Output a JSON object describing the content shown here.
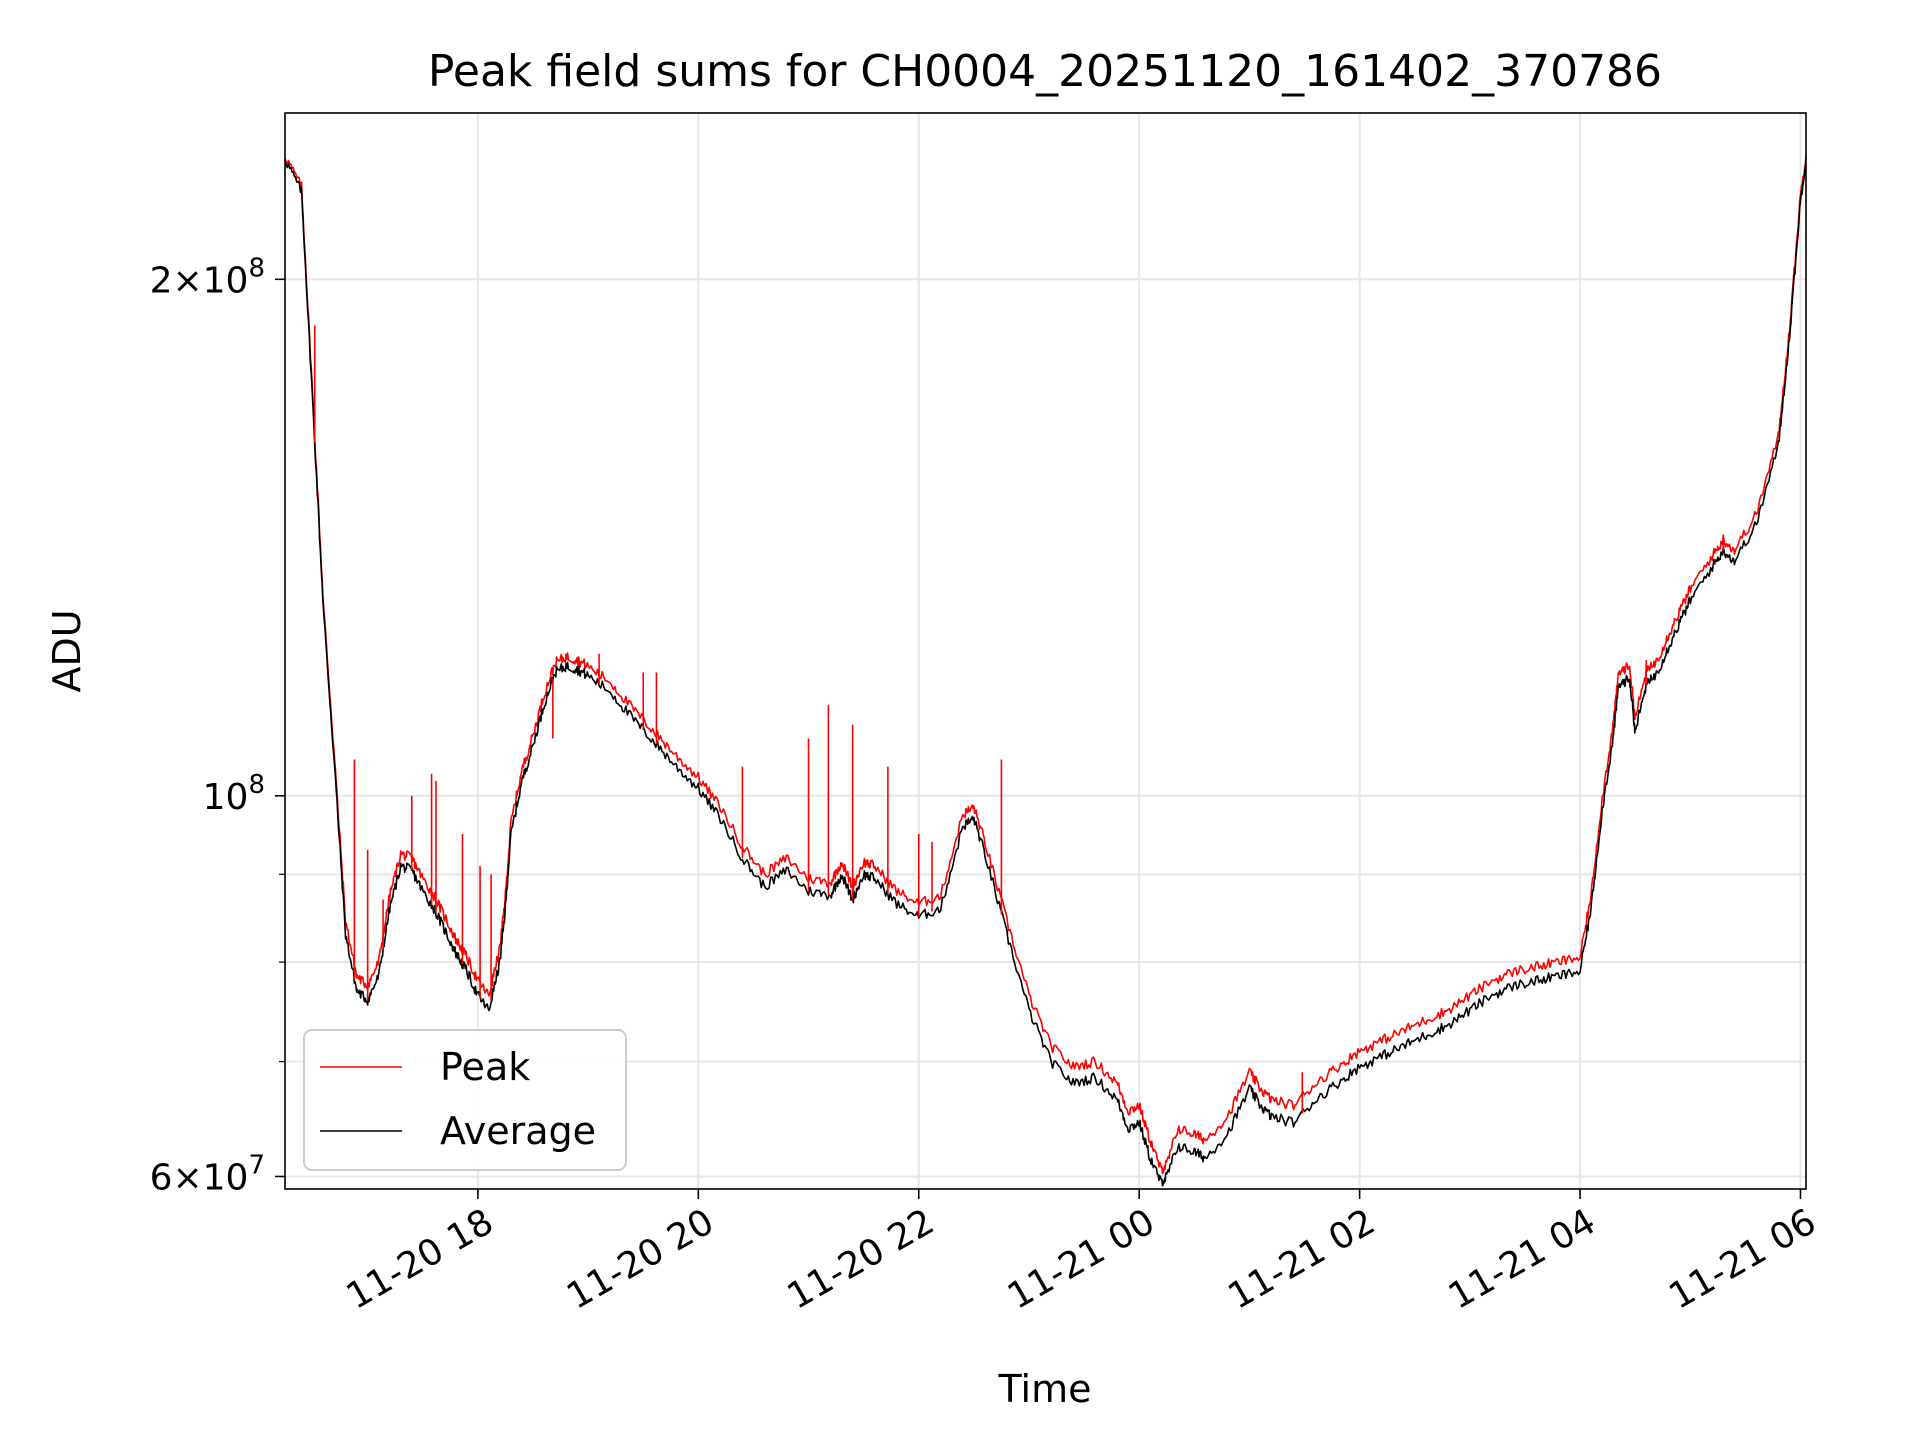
{
  "chart_data": {
    "type": "line",
    "title": "Peak field sums for CH0004_20251120_161402_370786",
    "xlabel": "Time",
    "ylabel": "ADU",
    "yscale": "log",
    "ylim": [
      59000000,
      250000000
    ],
    "xlim_hours": [
      16.25,
      30.05
    ],
    "x_unit": "hours since 2025-11-20 00:00",
    "grid": true,
    "legend_position": "lower-left",
    "x_ticks": [
      {
        "hour": 18,
        "label": "11-20 18"
      },
      {
        "hour": 20,
        "label": "11-20 20"
      },
      {
        "hour": 22,
        "label": "11-20 22"
      },
      {
        "hour": 24,
        "label": "11-21 00"
      },
      {
        "hour": 26,
        "label": "11-21 02"
      },
      {
        "hour": 28,
        "label": "11-21 04"
      },
      {
        "hour": 30,
        "label": "11-21 06"
      }
    ],
    "y_ticks": [
      {
        "value": 60000000,
        "base": "6",
        "exp": "7"
      },
      {
        "value": 100000000,
        "base": "",
        "exp": "8"
      },
      {
        "value": 200000000,
        "base": "2",
        "exp": "8"
      }
    ],
    "y_minor_ticks": [
      70000000,
      80000000,
      90000000
    ],
    "series": [
      {
        "name": "Average",
        "color": "#000000",
        "x": [
          16.25,
          16.4,
          16.5,
          16.6,
          16.7,
          16.8,
          16.9,
          17.0,
          17.1,
          17.2,
          17.3,
          17.4,
          17.5,
          17.6,
          17.7,
          17.8,
          17.9,
          18.0,
          18.1,
          18.2,
          18.25,
          18.3,
          18.4,
          18.5,
          18.6,
          18.7,
          18.8,
          18.9,
          19.0,
          19.2,
          19.4,
          19.6,
          19.8,
          20.0,
          20.2,
          20.4,
          20.6,
          20.8,
          21.0,
          21.2,
          21.3,
          21.4,
          21.5,
          21.6,
          21.8,
          22.0,
          22.2,
          22.4,
          22.5,
          22.6,
          22.8,
          23.0,
          23.2,
          23.4,
          23.6,
          23.8,
          23.9,
          24.0,
          24.1,
          24.2,
          24.25,
          24.35,
          24.5,
          24.6,
          24.8,
          25.0,
          25.1,
          25.2,
          25.4,
          25.6,
          25.8,
          26.0,
          26.2,
          26.4,
          26.6,
          26.8,
          27.0,
          27.2,
          27.4,
          27.6,
          27.8,
          28.0,
          28.1,
          28.2,
          28.3,
          28.35,
          28.45,
          28.5,
          28.6,
          28.7,
          28.8,
          28.9,
          29.0,
          29.2,
          29.3,
          29.4,
          29.6,
          29.8,
          29.9,
          30.0,
          30.05
        ],
        "y": [
          235000000,
          225000000,
          170000000,
          128000000,
          104000000,
          83000000,
          77000000,
          76000000,
          78500000,
          86000000,
          91000000,
          90500000,
          88000000,
          86000000,
          83500000,
          81000000,
          79000000,
          76500000,
          75000000,
          80000000,
          86000000,
          95000000,
          102000000,
          107000000,
          113000000,
          118000000,
          119000000,
          118500000,
          117500000,
          115000000,
          111000000,
          107500000,
          104000000,
          101000000,
          97000000,
          92000000,
          88500000,
          90500000,
          88000000,
          87500000,
          90000000,
          87000000,
          90000000,
          89500000,
          86500000,
          85000000,
          86000000,
          96000000,
          97000000,
          92500000,
          83000000,
          75000000,
          70000000,
          68000000,
          68500000,
          66500000,
          64000000,
          64500000,
          61500000,
          59500000,
          60000000,
          62500000,
          62000000,
          61500000,
          63500000,
          67500000,
          66000000,
          65000000,
          64500000,
          66500000,
          68000000,
          69500000,
          70500000,
          71500000,
          72500000,
          73500000,
          75000000,
          76500000,
          77500000,
          78000000,
          78500000,
          79000000,
          86000000,
          98000000,
          108000000,
          116000000,
          117000000,
          109000000,
          116000000,
          118000000,
          122000000,
          126000000,
          130000000,
          136000000,
          139000000,
          137000000,
          144000000,
          160000000,
          185000000,
          222000000,
          235000000
        ]
      },
      {
        "name": "Peak",
        "color": "#ff0000",
        "x": [
          16.25,
          16.4,
          16.5,
          16.6,
          16.7,
          16.8,
          16.9,
          17.0,
          17.1,
          17.2,
          17.3,
          17.4,
          17.5,
          17.6,
          17.7,
          17.8,
          17.9,
          18.0,
          18.1,
          18.2,
          18.25,
          18.3,
          18.4,
          18.5,
          18.6,
          18.7,
          18.8,
          18.9,
          19.0,
          19.2,
          19.4,
          19.6,
          19.8,
          20.0,
          20.2,
          20.4,
          20.6,
          20.8,
          21.0,
          21.2,
          21.3,
          21.4,
          21.5,
          21.6,
          21.8,
          22.0,
          22.2,
          22.4,
          22.5,
          22.6,
          22.8,
          23.0,
          23.2,
          23.4,
          23.6,
          23.8,
          23.9,
          24.0,
          24.1,
          24.2,
          24.25,
          24.35,
          24.5,
          24.6,
          24.8,
          25.0,
          25.1,
          25.2,
          25.4,
          25.6,
          25.8,
          26.0,
          26.2,
          26.4,
          26.6,
          26.8,
          27.0,
          27.2,
          27.4,
          27.6,
          27.8,
          28.0,
          28.1,
          28.2,
          28.3,
          28.35,
          28.45,
          28.5,
          28.6,
          28.7,
          28.8,
          28.9,
          29.0,
          29.2,
          29.3,
          29.4,
          29.6,
          29.8,
          29.9,
          30.0,
          30.05
        ],
        "y": [
          236000000,
          226500000,
          171500000,
          129000000,
          105000000,
          84500000,
          78500000,
          77500000,
          80000000,
          87500000,
          92500000,
          92000000,
          89500000,
          87500000,
          85000000,
          82500000,
          80500000,
          78000000,
          76500000,
          81500000,
          87500000,
          96500000,
          103500000,
          108500000,
          114500000,
          119500000,
          120500000,
          120000000,
          119000000,
          116500000,
          112500000,
          109000000,
          105500000,
          102500000,
          98500000,
          93500000,
          90000000,
          92000000,
          89500000,
          89000000,
          91500000,
          88500000,
          91500000,
          91000000,
          88000000,
          86500000,
          87500000,
          97500000,
          98500000,
          94000000,
          84500000,
          76500000,
          71500000,
          69500000,
          70000000,
          68000000,
          65500000,
          66000000,
          63000000,
          60500000,
          61000000,
          64000000,
          63500000,
          63000000,
          65000000,
          69000000,
          67500000,
          66500000,
          66000000,
          68000000,
          69500000,
          71000000,
          72000000,
          73000000,
          74000000,
          75000000,
          76500000,
          78000000,
          79000000,
          79500000,
          80000000,
          80500000,
          87500000,
          99500000,
          110000000,
          118000000,
          119000000,
          111000000,
          118000000,
          120000000,
          124000000,
          128000000,
          132000000,
          138000000,
          141000000,
          139000000,
          146000000,
          162000000,
          187000000,
          224000000,
          236000000
        ]
      }
    ],
    "peak_spikes": [
      {
        "x": 16.52,
        "y": 188000000
      },
      {
        "x": 16.88,
        "y": 105000000
      },
      {
        "x": 17.0,
        "y": 93000000
      },
      {
        "x": 17.14,
        "y": 87000000
      },
      {
        "x": 17.4,
        "y": 100000000
      },
      {
        "x": 17.58,
        "y": 103000000
      },
      {
        "x": 17.62,
        "y": 102000000
      },
      {
        "x": 17.86,
        "y": 95000000
      },
      {
        "x": 18.02,
        "y": 91000000
      },
      {
        "x": 18.12,
        "y": 90000000
      },
      {
        "x": 18.68,
        "y": 108000000
      },
      {
        "x": 19.1,
        "y": 121000000
      },
      {
        "x": 19.5,
        "y": 118000000
      },
      {
        "x": 19.62,
        "y": 118000000
      },
      {
        "x": 20.4,
        "y": 104000000
      },
      {
        "x": 21.0,
        "y": 108000000
      },
      {
        "x": 21.18,
        "y": 113000000
      },
      {
        "x": 21.4,
        "y": 110000000
      },
      {
        "x": 21.72,
        "y": 104000000
      },
      {
        "x": 22.0,
        "y": 95000000
      },
      {
        "x": 22.12,
        "y": 94000000
      },
      {
        "x": 22.75,
        "y": 105000000
      },
      {
        "x": 25.48,
        "y": 69000000
      },
      {
        "x": 28.6,
        "y": 120000000
      },
      {
        "x": 29.3,
        "y": 142000000
      }
    ],
    "legend": [
      "Peak",
      "Average"
    ]
  }
}
